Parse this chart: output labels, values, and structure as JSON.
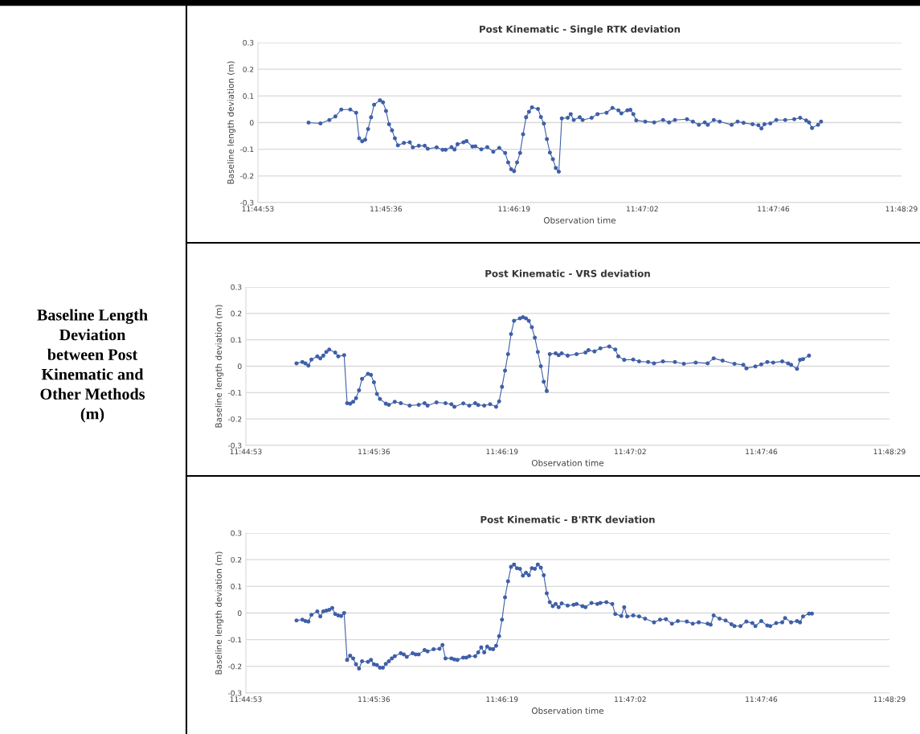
{
  "chart_data": [
    {
      "type": "other",
      "title": "Baseline Length\nDeviation\nbetween Post\nKinematic and\nOther Methods\n(m)"
    },
    {
      "type": "line",
      "title": "Post Kinematic - Single RTK deviation",
      "xlabel": "Observation time",
      "ylabel": "Baseline length deviation (m)",
      "xlim": [
        11.74806,
        11.80806
      ],
      "xticks": [
        {
          "value": 11.74806,
          "label": "11:44:53"
        },
        {
          "value": 11.76,
          "label": "11:45:36"
        },
        {
          "value": 11.77194,
          "label": "11:46:19"
        },
        {
          "value": 11.78389,
          "label": "11:47:02"
        },
        {
          "value": 11.79611,
          "label": "11:47:46"
        },
        {
          "value": 11.80806,
          "label": "11:48:29"
        }
      ],
      "ylim": [
        -0.3,
        0.3
      ],
      "yticks": [
        -0.3,
        -0.2,
        -0.1,
        0,
        0.1,
        0.2,
        0.3
      ],
      "grid": "y",
      "marker": "circle",
      "line_style": "solid",
      "series": [
        {
          "color": "#3f5fa8",
          "x": [
            11.75278,
            11.75389,
            11.75472,
            11.75528,
            11.75583,
            11.75667,
            11.75722,
            11.7575,
            11.75778,
            11.75806,
            11.75833,
            11.75861,
            11.75889,
            11.75944,
            11.75972,
            11.76,
            11.76028,
            11.76056,
            11.76083,
            11.76111,
            11.76167,
            11.76222,
            11.7625,
            11.76306,
            11.76361,
            11.76389,
            11.76472,
            11.76528,
            11.76556,
            11.76611,
            11.76639,
            11.76667,
            11.76722,
            11.7675,
            11.76806,
            11.76833,
            11.76889,
            11.76944,
            11.77,
            11.77056,
            11.77111,
            11.77139,
            11.77167,
            11.77194,
            11.77222,
            11.7725,
            11.77278,
            11.77306,
            11.77333,
            11.77361,
            11.77417,
            11.77444,
            11.77472,
            11.775,
            11.77528,
            11.77556,
            11.77583,
            11.77611,
            11.77639,
            11.77694,
            11.77722,
            11.7775,
            11.77806,
            11.77833,
            11.77917,
            11.77972,
            11.78056,
            11.78111,
            11.78167,
            11.78194,
            11.7825,
            11.78278,
            11.78306,
            11.78333,
            11.78417,
            11.785,
            11.78583,
            11.78639,
            11.78694,
            11.78806,
            11.78861,
            11.78917,
            11.78972,
            11.79,
            11.79056,
            11.79111,
            11.79222,
            11.79278,
            11.79333,
            11.79417,
            11.79472,
            11.795,
            11.79528,
            11.79583,
            11.79639,
            11.79722,
            11.79806,
            11.79861,
            11.79917,
            11.79944,
            11.79972,
            11.80028,
            11.80056
          ],
          "values": [
            0.0,
            -0.003,
            0.01,
            0.023,
            0.049,
            0.049,
            0.037,
            -0.059,
            -0.07,
            -0.064,
            -0.024,
            0.02,
            0.067,
            0.084,
            0.076,
            0.044,
            -0.006,
            -0.029,
            -0.059,
            -0.085,
            -0.076,
            -0.074,
            -0.093,
            -0.087,
            -0.087,
            -0.098,
            -0.093,
            -0.102,
            -0.102,
            -0.092,
            -0.101,
            -0.081,
            -0.074,
            -0.069,
            -0.09,
            -0.089,
            -0.1,
            -0.092,
            -0.109,
            -0.095,
            -0.114,
            -0.149,
            -0.175,
            -0.182,
            -0.149,
            -0.114,
            -0.044,
            0.02,
            0.041,
            0.057,
            0.051,
            0.021,
            -0.004,
            -0.062,
            -0.112,
            -0.137,
            -0.17,
            -0.184,
            0.016,
            0.018,
            0.032,
            0.01,
            0.02,
            0.01,
            0.018,
            0.032,
            0.037,
            0.055,
            0.046,
            0.035,
            0.046,
            0.048,
            0.032,
            0.008,
            0.004,
            0.001,
            0.01,
            0.001,
            0.01,
            0.013,
            0.004,
            -0.008,
            0.001,
            -0.008,
            0.01,
            0.004,
            -0.008,
            0.004,
            -0.001,
            -0.006,
            -0.01,
            -0.022,
            -0.006,
            -0.003,
            0.01,
            0.01,
            0.013,
            0.018,
            0.008,
            0.001,
            -0.02,
            -0.008,
            0.004
          ]
        }
      ]
    },
    {
      "type": "line",
      "title": "Post Kinematic - VRS deviation",
      "xlabel": "Observation time",
      "ylabel": "Baseline length deviation (m)",
      "xlim": [
        11.74806,
        11.80806
      ],
      "xticks": [
        {
          "value": 11.74806,
          "label": "11:44:53"
        },
        {
          "value": 11.76,
          "label": "11:45:36"
        },
        {
          "value": 11.77194,
          "label": "11:46:19"
        },
        {
          "value": 11.78389,
          "label": "11:47:02"
        },
        {
          "value": 11.79611,
          "label": "11:47:46"
        },
        {
          "value": 11.80806,
          "label": "11:48:29"
        }
      ],
      "ylim": [
        -0.3,
        0.3
      ],
      "yticks": [
        -0.3,
        -0.2,
        -0.1,
        0,
        0.1,
        0.2,
        0.3
      ],
      "grid": "y",
      "marker": "circle",
      "line_style": "solid",
      "series": [
        {
          "color": "#3f5fa8",
          "x": [
            11.75278,
            11.75333,
            11.75361,
            11.75389,
            11.75417,
            11.75472,
            11.755,
            11.75528,
            11.75556,
            11.75583,
            11.75639,
            11.75667,
            11.75722,
            11.7575,
            11.75778,
            11.75806,
            11.75833,
            11.75861,
            11.75889,
            11.75944,
            11.75972,
            11.76,
            11.76028,
            11.76056,
            11.76111,
            11.76139,
            11.76194,
            11.7625,
            11.76333,
            11.76417,
            11.76472,
            11.765,
            11.76583,
            11.76667,
            11.76722,
            11.7675,
            11.76833,
            11.76889,
            11.76944,
            11.76972,
            11.77028,
            11.77083,
            11.77139,
            11.77167,
            11.77194,
            11.77222,
            11.7725,
            11.77278,
            11.77306,
            11.77361,
            11.77389,
            11.77417,
            11.77444,
            11.77472,
            11.775,
            11.77528,
            11.77556,
            11.77583,
            11.77611,
            11.77639,
            11.77694,
            11.77722,
            11.7775,
            11.77806,
            11.77889,
            11.77972,
            11.78,
            11.78056,
            11.78111,
            11.78194,
            11.7825,
            11.78278,
            11.78333,
            11.78417,
            11.78472,
            11.78556,
            11.78611,
            11.78694,
            11.78806,
            11.78889,
            11.79,
            11.79111,
            11.79167,
            11.7925,
            11.79361,
            11.79444,
            11.79472,
            11.79556,
            11.79611,
            11.79667,
            11.79722,
            11.79806,
            11.79861,
            11.79889,
            11.79944,
            11.79972,
            11.8,
            11.80056
          ],
          "values": [
            0.011,
            0.016,
            0.011,
            0.002,
            0.025,
            0.037,
            0.03,
            0.04,
            0.054,
            0.063,
            0.052,
            0.037,
            0.042,
            -0.14,
            -0.142,
            -0.135,
            -0.121,
            -0.091,
            -0.048,
            -0.029,
            -0.033,
            -0.061,
            -0.105,
            -0.124,
            -0.142,
            -0.146,
            -0.135,
            -0.14,
            -0.149,
            -0.146,
            -0.14,
            -0.149,
            -0.137,
            -0.14,
            -0.144,
            -0.154,
            -0.141,
            -0.149,
            -0.14,
            -0.147,
            -0.149,
            -0.144,
            -0.154,
            -0.133,
            -0.078,
            -0.017,
            0.046,
            0.122,
            0.172,
            0.181,
            0.186,
            0.181,
            0.172,
            0.148,
            0.108,
            0.054,
            0.0,
            -0.059,
            -0.094,
            0.046,
            0.049,
            0.042,
            0.049,
            0.04,
            0.046,
            0.052,
            0.061,
            0.056,
            0.068,
            0.075,
            0.063,
            0.037,
            0.024,
            0.025,
            0.018,
            0.016,
            0.011,
            0.018,
            0.016,
            0.009,
            0.014,
            0.011,
            0.03,
            0.021,
            0.009,
            0.005,
            -0.008,
            -0.001,
            0.007,
            0.016,
            0.014,
            0.018,
            0.011,
            0.005,
            -0.01,
            0.024,
            0.027,
            0.04
          ]
        }
      ]
    },
    {
      "type": "line",
      "title": "Post Kinematic - B'RTK deviation",
      "xlabel": "Observation time",
      "ylabel": "Baseline length deviation (m)",
      "xlim": [
        11.74806,
        11.80806
      ],
      "xticks": [
        {
          "value": 11.74806,
          "label": "11:44:53"
        },
        {
          "value": 11.76,
          "label": "11:45:36"
        },
        {
          "value": 11.77194,
          "label": "11:46:19"
        },
        {
          "value": 11.78389,
          "label": "11:47:02"
        },
        {
          "value": 11.79611,
          "label": "11:47:46"
        },
        {
          "value": 11.80806,
          "label": "11:48:29"
        }
      ],
      "ylim": [
        -0.3,
        0.3
      ],
      "yticks": [
        -0.3,
        -0.2,
        -0.1,
        0,
        0.1,
        0.2,
        0.3
      ],
      "grid": "y",
      "marker": "circle",
      "line_style": "solid",
      "series": [
        {
          "color": "#3f5fa8",
          "x": [
            11.75278,
            11.75333,
            11.75361,
            11.75389,
            11.75417,
            11.75472,
            11.755,
            11.75528,
            11.75556,
            11.75583,
            11.75611,
            11.75639,
            11.75667,
            11.75694,
            11.75722,
            11.7575,
            11.75778,
            11.75806,
            11.75833,
            11.75861,
            11.75889,
            11.75944,
            11.75972,
            11.76,
            11.76028,
            11.76056,
            11.76083,
            11.76111,
            11.76139,
            11.76167,
            11.76194,
            11.7625,
            11.76278,
            11.76306,
            11.76361,
            11.76389,
            11.76417,
            11.76472,
            11.765,
            11.76556,
            11.76611,
            11.76639,
            11.76667,
            11.76722,
            11.7675,
            11.76778,
            11.76833,
            11.76861,
            11.76889,
            11.76944,
            11.76972,
            11.77,
            11.77028,
            11.77056,
            11.77083,
            11.77111,
            11.77139,
            11.77167,
            11.77194,
            11.77222,
            11.7725,
            11.77278,
            11.77306,
            11.77333,
            11.77361,
            11.77389,
            11.77417,
            11.77444,
            11.77472,
            11.775,
            11.77528,
            11.77556,
            11.77583,
            11.77611,
            11.77639,
            11.77667,
            11.77694,
            11.77722,
            11.7775,
            11.77806,
            11.77861,
            11.77889,
            11.77944,
            11.77972,
            11.78028,
            11.78083,
            11.78111,
            11.78167,
            11.78222,
            11.7825,
            11.78306,
            11.78333,
            11.78361,
            11.78417,
            11.78472,
            11.78528,
            11.78611,
            11.78667,
            11.78722,
            11.78778,
            11.78833,
            11.78917,
            11.78972,
            11.79028,
            11.79111,
            11.79139,
            11.79167,
            11.79222,
            11.79278,
            11.79333,
            11.79361,
            11.79417,
            11.79472,
            11.79528,
            11.79556,
            11.79611,
            11.79667,
            11.79694,
            11.7975,
            11.79806,
            11.79833,
            11.79889,
            11.79944,
            11.79972,
            11.8,
            11.80056,
            11.80083
          ],
          "values": [
            -0.028,
            -0.025,
            -0.03,
            -0.032,
            -0.007,
            0.006,
            -0.013,
            0.006,
            0.009,
            0.012,
            0.019,
            -0.004,
            -0.009,
            -0.011,
            0.0,
            -0.176,
            -0.16,
            -0.17,
            -0.192,
            -0.208,
            -0.181,
            -0.183,
            -0.176,
            -0.192,
            -0.195,
            -0.205,
            -0.205,
            -0.191,
            -0.181,
            -0.17,
            -0.162,
            -0.151,
            -0.155,
            -0.164,
            -0.151,
            -0.155,
            -0.155,
            -0.139,
            -0.144,
            -0.136,
            -0.134,
            -0.12,
            -0.17,
            -0.17,
            -0.174,
            -0.176,
            -0.167,
            -0.167,
            -0.162,
            -0.162,
            -0.148,
            -0.129,
            -0.148,
            -0.126,
            -0.134,
            -0.136,
            -0.123,
            -0.087,
            -0.025,
            0.059,
            0.119,
            0.173,
            0.182,
            0.168,
            0.166,
            0.14,
            0.151,
            0.142,
            0.168,
            0.166,
            0.182,
            0.17,
            0.142,
            0.074,
            0.041,
            0.026,
            0.034,
            0.022,
            0.036,
            0.028,
            0.031,
            0.034,
            0.026,
            0.022,
            0.038,
            0.034,
            0.038,
            0.041,
            0.034,
            -0.004,
            -0.011,
            0.022,
            -0.013,
            -0.009,
            -0.013,
            -0.021,
            -0.035,
            -0.025,
            -0.023,
            -0.04,
            -0.03,
            -0.032,
            -0.04,
            -0.035,
            -0.04,
            -0.044,
            -0.009,
            -0.021,
            -0.028,
            -0.042,
            -0.049,
            -0.049,
            -0.032,
            -0.038,
            -0.049,
            -0.03,
            -0.047,
            -0.049,
            -0.038,
            -0.035,
            -0.019,
            -0.035,
            -0.03,
            -0.035,
            -0.013,
            -0.002,
            -0.002
          ]
        }
      ]
    }
  ]
}
